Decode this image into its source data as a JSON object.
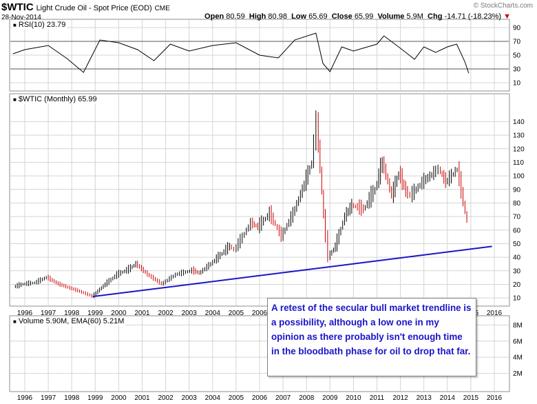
{
  "header": {
    "symbol": "$WTIC",
    "description": "Light Crude Oil - Spot Price (EOD)",
    "exchange": "CME",
    "date": "28-Nov-2014",
    "watermark": "© StockCharts.com",
    "open_label": "Open",
    "open": "80.59",
    "high_label": "High",
    "high": "80.98",
    "low_label": "Low",
    "low": "65.69",
    "close_label": "Close",
    "close": "65.99",
    "volume_label": "Volume",
    "volume": "5.9M",
    "chg_label": "Chg",
    "chg": "-14.71 (-18.23%)",
    "chg_arrow": "▼"
  },
  "panels": {
    "rsi_label": "RSI(10) 23.79",
    "price_label": "$WTIC (Monthly) 65.99",
    "volume_label": "Volume 5.90M, EMA(60) 5.21M"
  },
  "annotation": "A retest of the secular bull market trendline is a possibility, although a low one in my opinion as there probably isn't enough time in the bloodbath phase for oil to drop that far.",
  "colors": {
    "up": "#000000",
    "down": "#cc0000",
    "trendline": "#1a14c8",
    "grid": "#d4d4d4",
    "rsi_over": "#2e6b2e",
    "rsi_under": "#7a2a4a"
  },
  "chart_data": [
    {
      "type": "line",
      "title": "RSI(10) 23.79",
      "y_ticks": [
        10,
        30,
        50,
        70,
        90
      ],
      "ylim": [
        0,
        100
      ],
      "guide_lines": [
        30,
        70
      ],
      "x": [
        1995.5,
        1996,
        1997,
        1997.8,
        1998.5,
        1999.2,
        2000,
        2000.8,
        2001.5,
        2002.2,
        2003,
        2004,
        2005,
        2006,
        2006.8,
        2007.5,
        2008.4,
        2008.7,
        2009.0,
        2009.5,
        2010,
        2011,
        2011.3,
        2012,
        2012.6,
        2013,
        2013.5,
        2014,
        2014.4,
        2014.75,
        2014.91
      ],
      "values": [
        52,
        58,
        64,
        45,
        25,
        72,
        68,
        58,
        42,
        66,
        56,
        64,
        68,
        50,
        46,
        72,
        82,
        38,
        26,
        62,
        56,
        66,
        78,
        60,
        44,
        62,
        54,
        62,
        66,
        40,
        23.79
      ]
    },
    {
      "type": "line",
      "title": "$WTIC (Monthly) 65.99",
      "series_style": "ohlc-monthly",
      "x_ticks": [
        "1996",
        "1997",
        "1998",
        "1999",
        "2000",
        "2001",
        "2002",
        "2003",
        "2004",
        "2005",
        "2006",
        "2007",
        "2008",
        "2009",
        "2010",
        "2011",
        "2012",
        "2013",
        "2014",
        "2015",
        "2016"
      ],
      "y_ticks": [
        10,
        20,
        30,
        40,
        50,
        60,
        70,
        80,
        90,
        100,
        110,
        120,
        130,
        140
      ],
      "ylim": [
        6,
        156
      ],
      "x": [
        1995.6,
        1996.0,
        1996.5,
        1997.0,
        1997.5,
        1998.0,
        1998.5,
        1998.95,
        1999.5,
        2000.0,
        2000.5,
        2000.8,
        2001.3,
        2001.9,
        2002.5,
        2003.2,
        2003.5,
        2004.0,
        2004.8,
        2005.0,
        2005.7,
        2006.0,
        2006.5,
        2007.0,
        2007.5,
        2007.9,
        2008.3,
        2008.5,
        2008.8,
        2009.0,
        2009.3,
        2009.7,
        2010.0,
        2010.5,
        2011.0,
        2011.3,
        2011.7,
        2012.0,
        2012.3,
        2012.5,
        2013.0,
        2013.5,
        2013.7,
        2014.0,
        2014.5,
        2014.75,
        2014.91
      ],
      "values": [
        18,
        20,
        21,
        25,
        20,
        17,
        14,
        11,
        20,
        27,
        31,
        35,
        27,
        20,
        27,
        30,
        28,
        35,
        48,
        45,
        65,
        62,
        72,
        55,
        72,
        90,
        110,
        140,
        70,
        40,
        48,
        70,
        78,
        75,
        90,
        110,
        85,
        102,
        88,
        85,
        95,
        102,
        105,
        95,
        105,
        80,
        65.99
      ],
      "trendline": {
        "x": [
          1998.9,
          2015.9
        ],
        "values": [
          11,
          48
        ]
      }
    },
    {
      "type": "bar",
      "title": "Volume 5.90M, EMA(60) 5.21M",
      "y_ticks": [
        "2M",
        "4M",
        "6M",
        "8M"
      ],
      "x_ticks": [
        "1996",
        "1997",
        "1998",
        "1999",
        "2000",
        "2001",
        "2002",
        "2003",
        "2004",
        "2005",
        "2006",
        "2007",
        "2008",
        "2009",
        "2010",
        "2011",
        "2012",
        "2013",
        "2014",
        "2015",
        "2016"
      ],
      "values": []
    }
  ]
}
